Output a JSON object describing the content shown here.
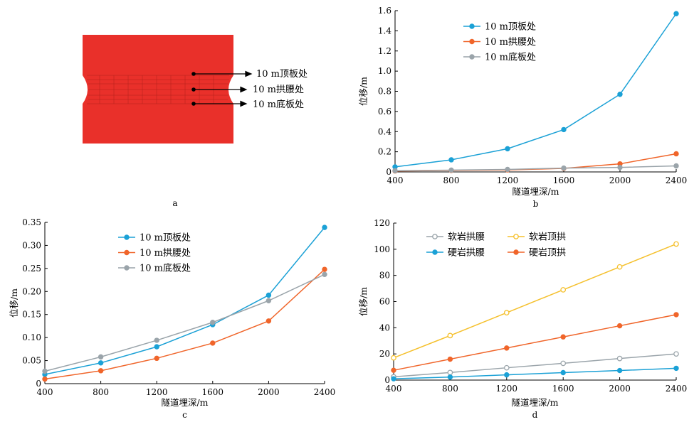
{
  "colors": {
    "blue": "#1ba1d6",
    "orange": "#f0652a",
    "gray": "#9aa4aa",
    "yellow": "#f5c02c",
    "model_red": "#e9302a",
    "axis": "#000000"
  },
  "diagram_a": {
    "labels": [
      "10 m顶板处",
      "10 m拱腰处",
      "10 m底板处"
    ],
    "panel_label": "a"
  },
  "chart_data": [
    {
      "id": "b",
      "type": "line",
      "panel_label": "b",
      "x": [
        400,
        800,
        1200,
        1600,
        2000,
        2400
      ],
      "xlabel": "隧道埋深/m",
      "ylabel": "位移/m",
      "xlim": [
        400,
        2400
      ],
      "ylim": [
        0,
        1.6
      ],
      "yticks": [
        "0",
        "0.2",
        "0.4",
        "0.6",
        "0.8",
        "1.0",
        "1.2",
        "1.4",
        "1.6"
      ],
      "ytick_values": [
        0,
        0.2,
        0.4,
        0.6,
        0.8,
        1.0,
        1.2,
        1.4,
        1.6
      ],
      "xticks": [
        "400",
        "800",
        "1200",
        "1600",
        "2000",
        "2400"
      ],
      "legend_position": "top-center",
      "series": [
        {
          "name": "10 m顶板处",
          "color": "#1ba1d6",
          "marker": "filled",
          "values": [
            0.05,
            0.12,
            0.23,
            0.42,
            0.77,
            1.57
          ]
        },
        {
          "name": "10 m拱腰处",
          "color": "#f0652a",
          "marker": "filled",
          "values": [
            0.01,
            0.015,
            0.02,
            0.035,
            0.08,
            0.18
          ]
        },
        {
          "name": "10 m底板处",
          "color": "#9aa4aa",
          "marker": "filled",
          "values": [
            0.012,
            0.018,
            0.025,
            0.038,
            0.045,
            0.06
          ]
        }
      ]
    },
    {
      "id": "c",
      "type": "line",
      "panel_label": "c",
      "x": [
        400,
        800,
        1200,
        1600,
        2000,
        2400
      ],
      "xlabel": "隧道埋深/m",
      "ylabel": "位移/m",
      "xlim": [
        400,
        2400
      ],
      "ylim": [
        0,
        0.35
      ],
      "yticks": [
        "0",
        "0.05",
        "0.10",
        "0.15",
        "0.20",
        "0.25",
        "0.30",
        "0.35"
      ],
      "ytick_values": [
        0,
        0.05,
        0.1,
        0.15,
        0.2,
        0.25,
        0.3,
        0.35
      ],
      "xticks": [
        "400",
        "800",
        "1200",
        "1600",
        "2000",
        "2400"
      ],
      "legend_position": "top-left",
      "series": [
        {
          "name": "10 m顶板处",
          "color": "#1ba1d6",
          "marker": "filled",
          "values": [
            0.02,
            0.045,
            0.08,
            0.128,
            0.192,
            0.339
          ]
        },
        {
          "name": "10 m拱腰处",
          "color": "#f0652a",
          "marker": "filled",
          "values": [
            0.01,
            0.028,
            0.055,
            0.088,
            0.136,
            0.248
          ]
        },
        {
          "name": "10 m底板处",
          "color": "#9aa4aa",
          "marker": "filled",
          "values": [
            0.027,
            0.058,
            0.094,
            0.133,
            0.18,
            0.237
          ]
        }
      ]
    },
    {
      "id": "d",
      "type": "line",
      "panel_label": "d",
      "x": [
        400,
        800,
        1200,
        1600,
        2000,
        2400
      ],
      "xlabel": "隧道埋深/m",
      "ylabel": "位移/m",
      "xlim": [
        400,
        2400
      ],
      "ylim": [
        0,
        120
      ],
      "yticks": [
        "0",
        "20",
        "40",
        "60",
        "80",
        "100",
        "120"
      ],
      "ytick_values": [
        0,
        20,
        40,
        60,
        80,
        100,
        120
      ],
      "xticks": [
        "400",
        "800",
        "1200",
        "1600",
        "2000",
        "2400"
      ],
      "legend_position": "top-left",
      "legend_columns": 2,
      "series": [
        {
          "name": "软岩拱腰",
          "color": "#9aa4aa",
          "marker": "hollow",
          "values": [
            2.5,
            5.8,
            9.4,
            12.8,
            16.5,
            20.0
          ]
        },
        {
          "name": "软岩顶拱",
          "color": "#f5c02c",
          "marker": "hollow",
          "values": [
            17.0,
            34.0,
            51.5,
            69.0,
            86.5,
            104.0
          ]
        },
        {
          "name": "硬岩拱腰",
          "color": "#1ba1d6",
          "marker": "filled",
          "values": [
            1.0,
            2.3,
            4.0,
            5.7,
            7.3,
            9.0
          ]
        },
        {
          "name": "硬岩顶拱",
          "color": "#f0652a",
          "marker": "filled",
          "values": [
            7.5,
            16.0,
            24.5,
            33.0,
            41.5,
            50.0
          ]
        }
      ]
    }
  ]
}
